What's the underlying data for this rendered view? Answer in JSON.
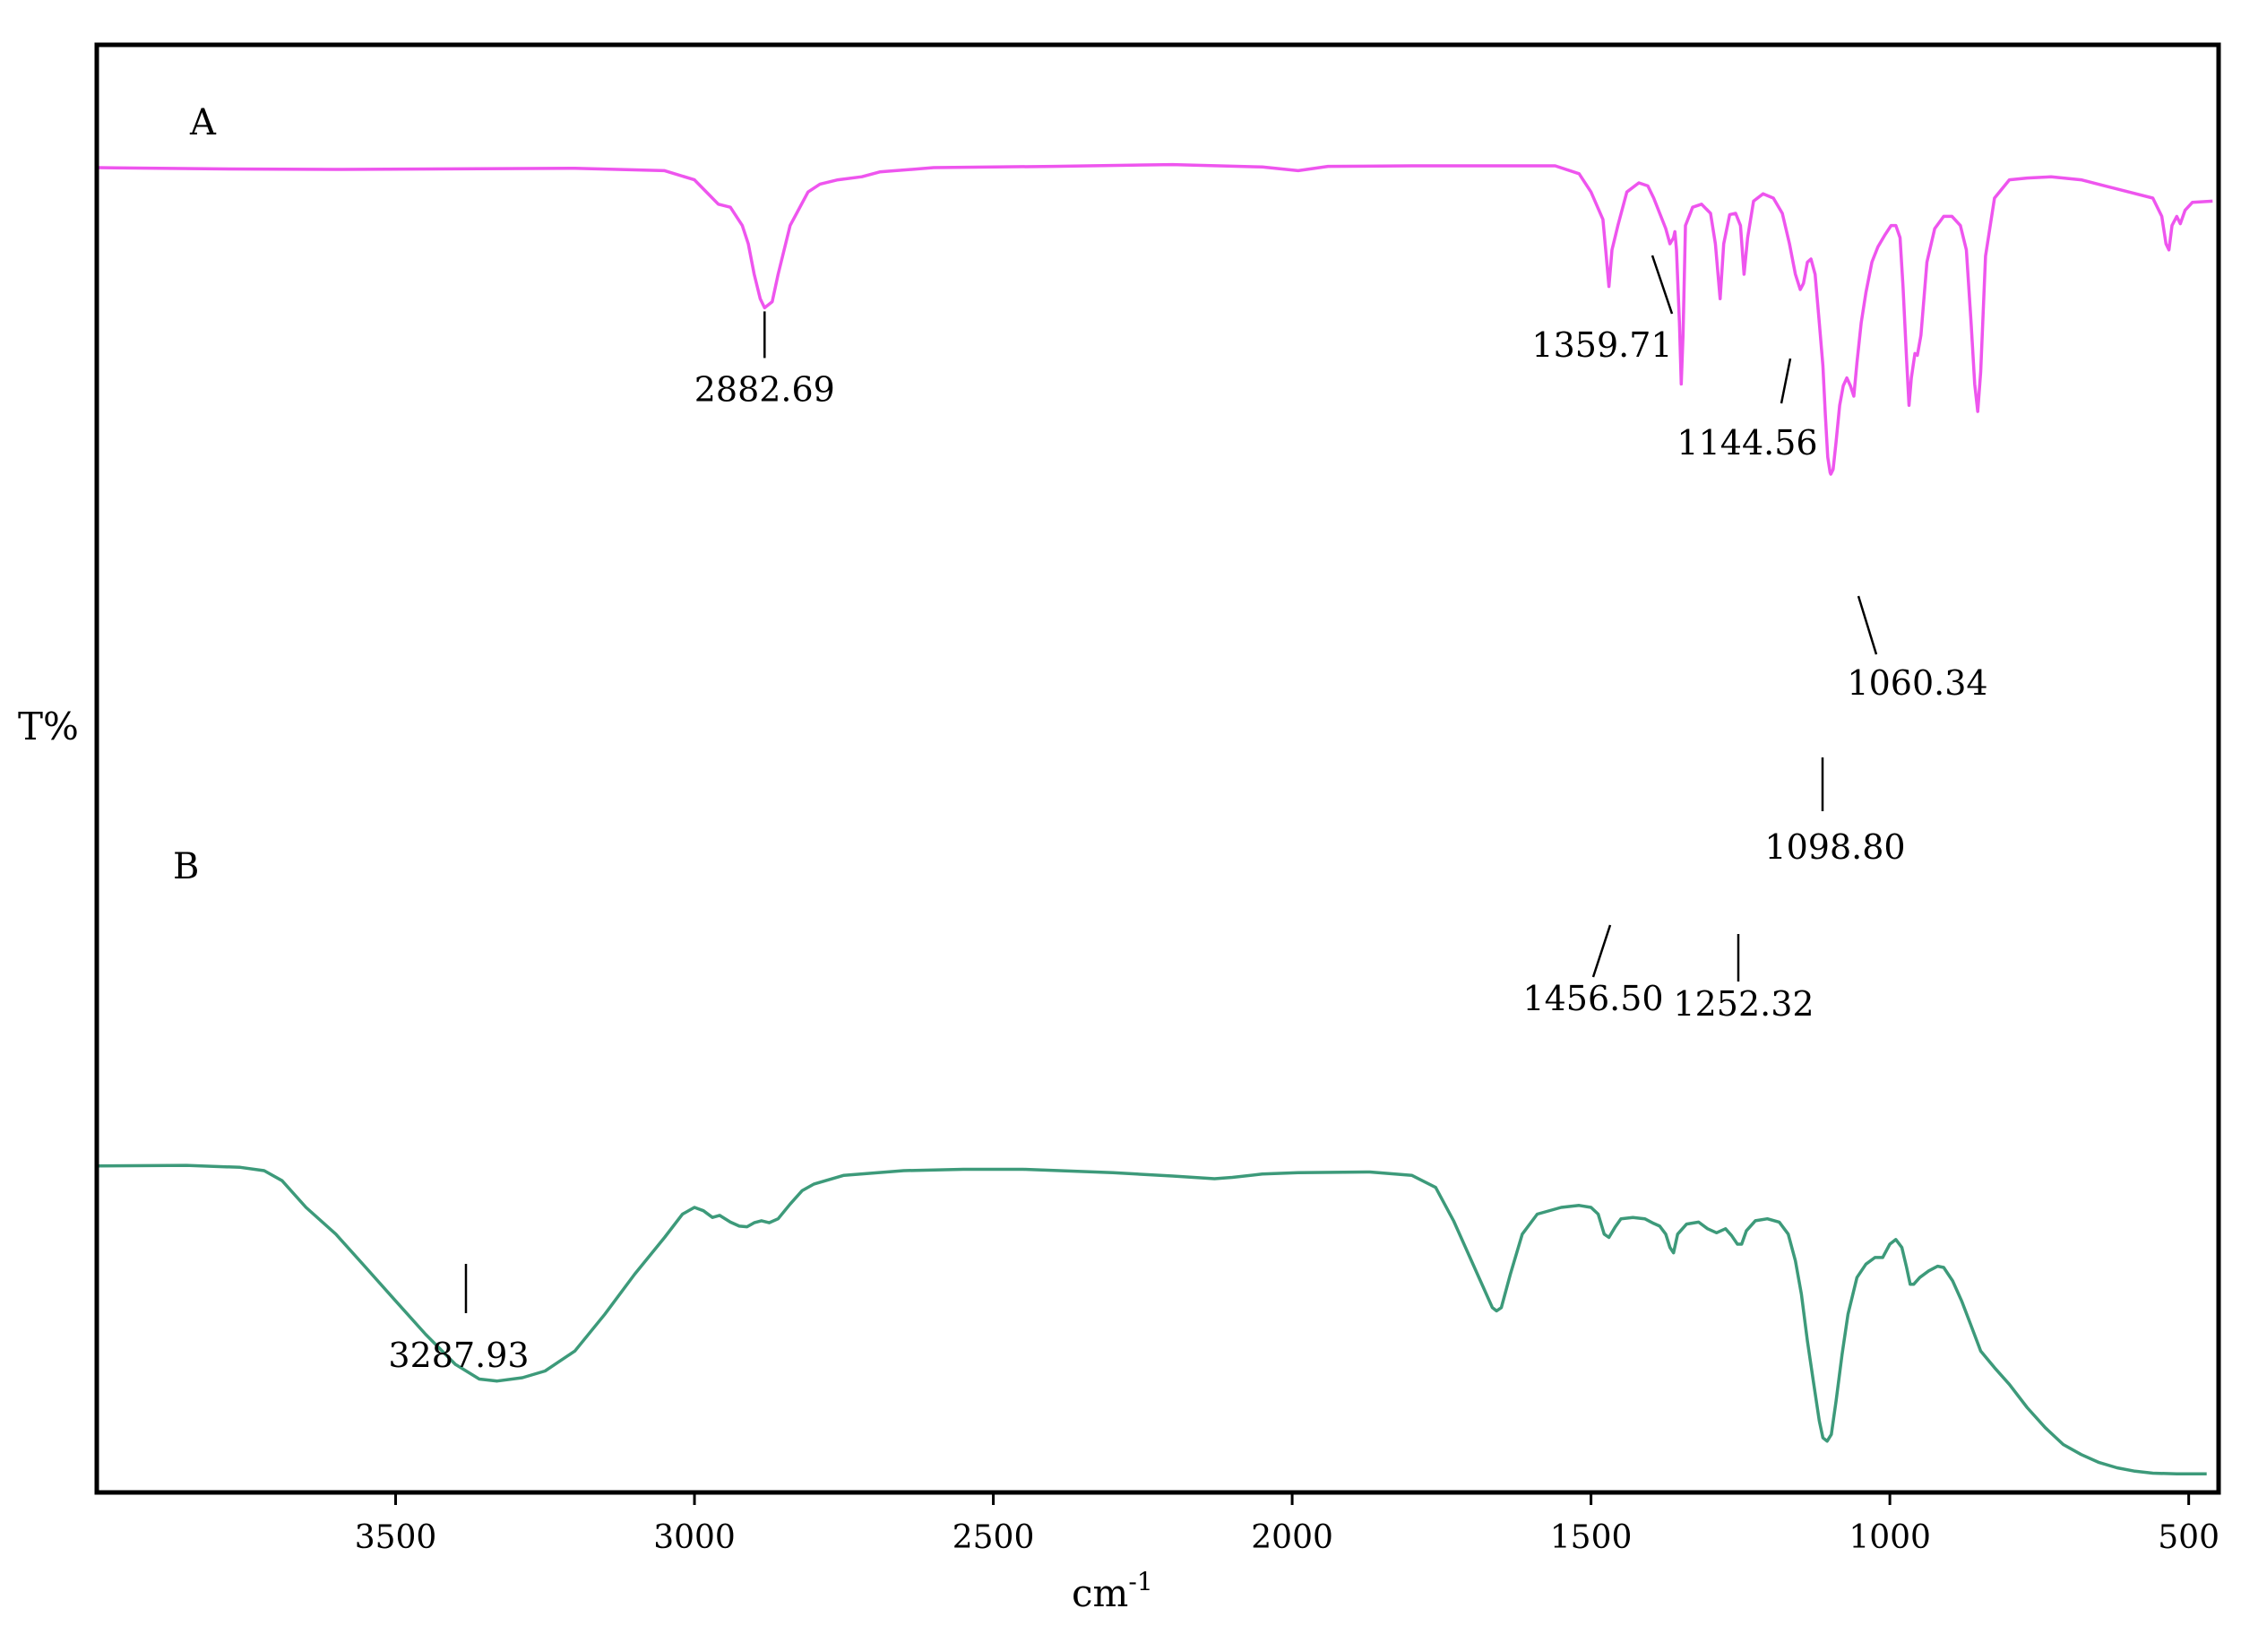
{
  "chart_data": {
    "type": "line",
    "title": "",
    "xlabel": "cm",
    "xlabel_superscript": "-1",
    "ylabel": "T%",
    "xlim": [
      4000,
      450
    ],
    "x_reversed": true,
    "xticks": [
      3500,
      3000,
      2500,
      2000,
      1500,
      1000,
      500
    ],
    "grid": false,
    "legend": "none",
    "series": [
      {
        "name": "A",
        "color": "#ee55ee",
        "points": [
          [
            4000,
            0.975
          ],
          [
            3800,
            0.973
          ],
          [
            3600,
            0.972
          ],
          [
            3400,
            0.973
          ],
          [
            3200,
            0.974
          ],
          [
            3050,
            0.97
          ],
          [
            3000,
            0.955
          ],
          [
            2975,
            0.93
          ],
          [
            2960,
            0.915
          ],
          [
            2940,
            0.91
          ],
          [
            2920,
            0.88
          ],
          [
            2910,
            0.85
          ],
          [
            2900,
            0.8
          ],
          [
            2890,
            0.76
          ],
          [
            2882.69,
            0.745
          ],
          [
            2870,
            0.755
          ],
          [
            2860,
            0.8
          ],
          [
            2840,
            0.88
          ],
          [
            2810,
            0.935
          ],
          [
            2790,
            0.948
          ],
          [
            2760,
            0.955
          ],
          [
            2720,
            0.96
          ],
          [
            2690,
            0.968
          ],
          [
            2600,
            0.975
          ],
          [
            2400,
            0.977
          ],
          [
            2200,
            0.98
          ],
          [
            2050,
            0.976
          ],
          [
            1990,
            0.97
          ],
          [
            1940,
            0.977
          ],
          [
            1800,
            0.978
          ],
          [
            1560,
            0.978
          ],
          [
            1520,
            0.965
          ],
          [
            1500,
            0.935
          ],
          [
            1480,
            0.89
          ],
          [
            1475,
            0.835
          ],
          [
            1470,
            0.78
          ],
          [
            1465,
            0.84
          ],
          [
            1455,
            0.88
          ],
          [
            1440,
            0.935
          ],
          [
            1420,
            0.95
          ],
          [
            1405,
            0.945
          ],
          [
            1395,
            0.925
          ],
          [
            1385,
            0.9
          ],
          [
            1375,
            0.875
          ],
          [
            1368,
            0.85
          ],
          [
            1362,
            0.86
          ],
          [
            1359.71,
            0.87
          ],
          [
            1357,
            0.84
          ],
          [
            1352,
            0.72
          ],
          [
            1349,
            0.62
          ],
          [
            1346,
            0.7
          ],
          [
            1342,
            0.88
          ],
          [
            1330,
            0.91
          ],
          [
            1315,
            0.915
          ],
          [
            1300,
            0.9
          ],
          [
            1292,
            0.85
          ],
          [
            1284,
            0.76
          ],
          [
            1278,
            0.85
          ],
          [
            1268,
            0.898
          ],
          [
            1258,
            0.9
          ],
          [
            1250,
            0.88
          ],
          [
            1244,
            0.8
          ],
          [
            1238,
            0.86
          ],
          [
            1228,
            0.92
          ],
          [
            1212,
            0.932
          ],
          [
            1195,
            0.925
          ],
          [
            1180,
            0.9
          ],
          [
            1168,
            0.85
          ],
          [
            1158,
            0.8
          ],
          [
            1150,
            0.775
          ],
          [
            1144.56,
            0.785
          ],
          [
            1138,
            0.82
          ],
          [
            1132,
            0.825
          ],
          [
            1125,
            0.8
          ],
          [
            1118,
            0.72
          ],
          [
            1112,
            0.65
          ],
          [
            1108,
            0.57
          ],
          [
            1104,
            0.5
          ],
          [
            1100,
            0.475
          ],
          [
            1098.8,
            0.472
          ],
          [
            1095,
            0.48
          ],
          [
            1090,
            0.525
          ],
          [
            1084,
            0.585
          ],
          [
            1078,
            0.617
          ],
          [
            1072,
            0.63
          ],
          [
            1066,
            0.617
          ],
          [
            1060.34,
            0.6
          ],
          [
            1055,
            0.655
          ],
          [
            1048,
            0.72
          ],
          [
            1040,
            0.77
          ],
          [
            1030,
            0.82
          ],
          [
            1020,
            0.845
          ],
          [
            1008,
            0.865
          ],
          [
            998,
            0.88
          ],
          [
            990,
            0.88
          ],
          [
            983,
            0.86
          ],
          [
            978,
            0.78
          ],
          [
            972,
            0.66
          ],
          [
            968,
            0.585
          ],
          [
            964,
            0.63
          ],
          [
            958,
            0.67
          ],
          [
            954,
            0.667
          ],
          [
            948,
            0.7
          ],
          [
            938,
            0.82
          ],
          [
            925,
            0.875
          ],
          [
            910,
            0.895
          ],
          [
            896,
            0.895
          ],
          [
            882,
            0.88
          ],
          [
            872,
            0.84
          ],
          [
            864,
            0.72
          ],
          [
            858,
            0.62
          ],
          [
            853,
            0.575
          ],
          [
            848,
            0.64
          ],
          [
            840,
            0.83
          ],
          [
            825,
            0.925
          ],
          [
            800,
            0.955
          ],
          [
            770,
            0.958
          ],
          [
            730,
            0.96
          ],
          [
            680,
            0.955
          ],
          [
            640,
            0.945
          ],
          [
            600,
            0.935
          ],
          [
            560,
            0.925
          ],
          [
            545,
            0.895
          ],
          [
            538,
            0.85
          ],
          [
            533,
            0.84
          ],
          [
            528,
            0.88
          ],
          [
            520,
            0.895
          ],
          [
            514,
            0.883
          ],
          [
            506,
            0.905
          ],
          [
            494,
            0.918
          ],
          [
            460,
            0.92
          ]
        ],
        "peak_labels": [
          {
            "text": "2882.69",
            "x": 2882.69
          },
          {
            "text": "1359.71",
            "x": 1359.71
          },
          {
            "text": "1144.56",
            "x": 1144.56
          },
          {
            "text": "1098.80",
            "x": 1098.8
          },
          {
            "text": "1060.34",
            "x": 1060.34
          }
        ]
      },
      {
        "name": "B",
        "color": "#3d9a7a",
        "points": [
          [
            4000,
            0.462
          ],
          [
            3850,
            0.463
          ],
          [
            3760,
            0.46
          ],
          [
            3720,
            0.455
          ],
          [
            3690,
            0.44
          ],
          [
            3650,
            0.4
          ],
          [
            3600,
            0.36
          ],
          [
            3550,
            0.31
          ],
          [
            3500,
            0.26
          ],
          [
            3450,
            0.21
          ],
          [
            3400,
            0.165
          ],
          [
            3360,
            0.143
          ],
          [
            3330,
            0.14
          ],
          [
            3287.93,
            0.145
          ],
          [
            3250,
            0.155
          ],
          [
            3200,
            0.185
          ],
          [
            3150,
            0.24
          ],
          [
            3100,
            0.3
          ],
          [
            3050,
            0.355
          ],
          [
            3020,
            0.39
          ],
          [
            3000,
            0.4
          ],
          [
            2985,
            0.395
          ],
          [
            2970,
            0.385
          ],
          [
            2958,
            0.388
          ],
          [
            2940,
            0.378
          ],
          [
            2925,
            0.372
          ],
          [
            2912,
            0.371
          ],
          [
            2900,
            0.377
          ],
          [
            2888,
            0.38
          ],
          [
            2875,
            0.377
          ],
          [
            2860,
            0.383
          ],
          [
            2840,
            0.405
          ],
          [
            2820,
            0.425
          ],
          [
            2800,
            0.435
          ],
          [
            2750,
            0.448
          ],
          [
            2650,
            0.455
          ],
          [
            2550,
            0.457
          ],
          [
            2450,
            0.457
          ],
          [
            2300,
            0.452
          ],
          [
            2200,
            0.447
          ],
          [
            2130,
            0.443
          ],
          [
            2100,
            0.445
          ],
          [
            2050,
            0.45
          ],
          [
            1990,
            0.452
          ],
          [
            1870,
            0.453
          ],
          [
            1800,
            0.448
          ],
          [
            1760,
            0.43
          ],
          [
            1730,
            0.38
          ],
          [
            1700,
            0.32
          ],
          [
            1680,
            0.28
          ],
          [
            1665,
            0.25
          ],
          [
            1658,
            0.245
          ],
          [
            1650,
            0.25
          ],
          [
            1635,
            0.3
          ],
          [
            1615,
            0.36
          ],
          [
            1590,
            0.39
          ],
          [
            1550,
            0.4
          ],
          [
            1520,
            0.403
          ],
          [
            1500,
            0.4
          ],
          [
            1488,
            0.39
          ],
          [
            1478,
            0.36
          ],
          [
            1470,
            0.355
          ],
          [
            1460,
            0.37
          ],
          [
            1450,
            0.383
          ],
          [
            1430,
            0.385
          ],
          [
            1410,
            0.383
          ],
          [
            1395,
            0.376
          ],
          [
            1385,
            0.372
          ],
          [
            1375,
            0.36
          ],
          [
            1368,
            0.34
          ],
          [
            1362,
            0.332
          ],
          [
            1355,
            0.36
          ],
          [
            1340,
            0.375
          ],
          [
            1320,
            0.378
          ],
          [
            1305,
            0.368
          ],
          [
            1290,
            0.362
          ],
          [
            1275,
            0.368
          ],
          [
            1265,
            0.358
          ],
          [
            1255,
            0.345
          ],
          [
            1248,
            0.345
          ],
          [
            1240,
            0.365
          ],
          [
            1225,
            0.38
          ],
          [
            1205,
            0.383
          ],
          [
            1185,
            0.378
          ],
          [
            1170,
            0.36
          ],
          [
            1158,
            0.32
          ],
          [
            1148,
            0.27
          ],
          [
            1138,
            0.2
          ],
          [
            1128,
            0.14
          ],
          [
            1118,
            0.08
          ],
          [
            1112,
            0.055
          ],
          [
            1105,
            0.05
          ],
          [
            1098,
            0.06
          ],
          [
            1090,
            0.11
          ],
          [
            1080,
            0.18
          ],
          [
            1070,
            0.24
          ],
          [
            1055,
            0.295
          ],
          [
            1040,
            0.315
          ],
          [
            1025,
            0.325
          ],
          [
            1012,
            0.325
          ],
          [
            1000,
            0.345
          ],
          [
            990,
            0.352
          ],
          [
            980,
            0.34
          ],
          [
            972,
            0.31
          ],
          [
            966,
            0.285
          ],
          [
            960,
            0.285
          ],
          [
            950,
            0.295
          ],
          [
            935,
            0.305
          ],
          [
            920,
            0.312
          ],
          [
            910,
            0.31
          ],
          [
            895,
            0.29
          ],
          [
            880,
            0.26
          ],
          [
            865,
            0.225
          ],
          [
            848,
            0.185
          ],
          [
            825,
            0.16
          ],
          [
            800,
            0.135
          ],
          [
            770,
            0.1
          ],
          [
            740,
            0.07
          ],
          [
            710,
            0.045
          ],
          [
            680,
            0.03
          ],
          [
            650,
            0.018
          ],
          [
            620,
            0.01
          ],
          [
            590,
            0.005
          ],
          [
            560,
            0.002
          ],
          [
            520,
            0.001
          ],
          [
            470,
            0.001
          ]
        ],
        "peak_labels": [
          {
            "text": "3287.93",
            "x": 3287.93
          },
          {
            "text": "1456.50",
            "x": 1456.5
          },
          {
            "text": "1252.32",
            "x": 1252.32
          }
        ]
      }
    ]
  }
}
